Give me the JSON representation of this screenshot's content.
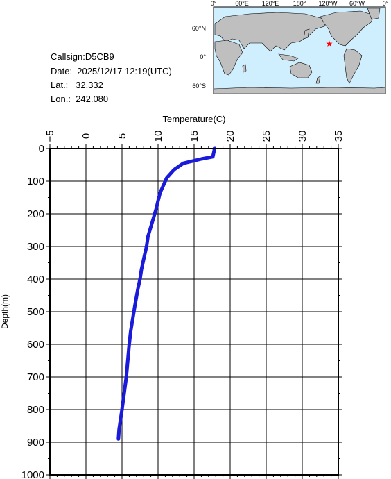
{
  "info": {
    "callsign": "Callsign:D5CB9",
    "date": "Date:  2025/12/17 12:19(UTC)",
    "lat": "Lat.:   32.332",
    "lon": "Lon.:  242.080"
  },
  "map": {
    "top_labels": [
      "0°",
      "60°E",
      "120°E",
      "180°",
      "120°W",
      "60°W",
      "0°"
    ],
    "left_labels": [
      "60°N",
      "0°",
      "60°S"
    ],
    "ocean_color": "#cfefff",
    "land_color": "#bfbfbf",
    "marker_color": "#ff0000",
    "marker_icon": "star-icon"
  },
  "chart_data": {
    "type": "line",
    "xlabel": "Temperature(C)",
    "ylabel": "Depth(m)",
    "xlim": [
      -5,
      35
    ],
    "ylim": [
      1000,
      0
    ],
    "x_ticks": [
      -5,
      0,
      5,
      10,
      15,
      20,
      25,
      30,
      35
    ],
    "y_ticks": [
      0,
      100,
      200,
      300,
      400,
      500,
      600,
      700,
      800,
      900,
      1000
    ],
    "grid": true,
    "line_color": "#1a1adb",
    "series": [
      {
        "temperature": [
          17.8,
          17.8,
          17.6,
          16.0,
          13.5,
          12.2,
          11.2,
          10.6,
          10.3,
          10.0,
          9.8,
          9.4,
          9.0,
          8.6,
          8.4,
          8.1,
          7.7,
          7.5,
          7.2,
          6.8,
          6.5,
          6.2,
          6.0,
          5.8,
          5.6,
          5.3,
          5.0,
          4.8,
          4.6,
          4.5
        ],
        "depth": [
          0,
          5,
          25,
          32,
          45,
          65,
          90,
          120,
          135,
          160,
          180,
          210,
          240,
          270,
          300,
          330,
          370,
          400,
          430,
          480,
          520,
          560,
          600,
          650,
          700,
          750,
          800,
          830,
          860,
          890
        ]
      }
    ]
  }
}
